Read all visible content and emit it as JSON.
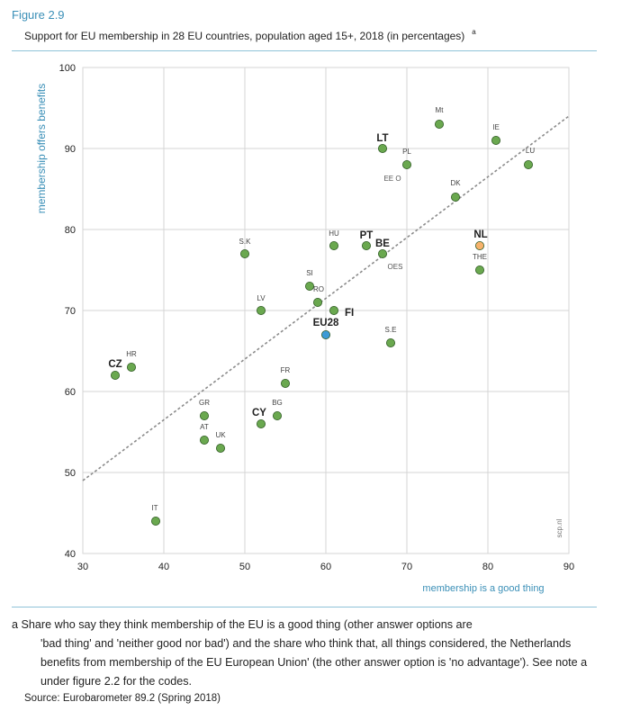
{
  "figure_label": "Figure 2.9",
  "figure_title": "Support for EU membership in 28 EU countries, population aged 15+, 2018 (in percentages)",
  "figure_title_note_mark": "a",
  "watermark": "scp.nl",
  "footnote": {
    "first_line": "a Share who say they think membership of the EU is a good thing (other answer options are",
    "rest": "'bad thing' and 'neither good nor bad') and the share who think that, all things considered, the Netherlands benefits from membership of the EU European Union' (the other answer option is 'no advantage'). See note a under figure 2.2 for the codes."
  },
  "source": "Source: Eurobarometer 89.2 (Spring 2018)",
  "colors": {
    "default_point": "#6aa84f",
    "point_stroke": "#2e5a23",
    "highlight_nl": "#f6b26b",
    "highlight_eu28": "#3d9bd6",
    "axis_title": "#3a8fb7",
    "grid": "#d4d4d4",
    "trend": "#8c8c8c"
  },
  "chart_data": {
    "type": "scatter",
    "xlabel": "membership is a good thing",
    "ylabel": "membership offers benefits",
    "xlim": [
      30,
      90
    ],
    "ylim": [
      40,
      100
    ],
    "xticks": [
      30,
      40,
      50,
      60,
      70,
      80,
      90
    ],
    "yticks": [
      40,
      50,
      60,
      70,
      80,
      90,
      100
    ],
    "grid": true,
    "trendline": {
      "from": [
        30,
        49
      ],
      "to": [
        90,
        94
      ]
    },
    "points": [
      {
        "label": "Mt",
        "x": 74,
        "y": 93
      },
      {
        "label": "IE",
        "x": 81,
        "y": 91
      },
      {
        "label": "LU",
        "x": 85,
        "y": 88
      },
      {
        "label": "LT",
        "x": 67,
        "y": 90,
        "emphasis": true
      },
      {
        "label": "PL",
        "x": 70,
        "y": 88
      },
      {
        "label": "EE O",
        "x": null,
        "y": null
      },
      {
        "label": "DK",
        "x": 76,
        "y": 84
      },
      {
        "label": "NL",
        "x": 79,
        "y": 78,
        "emphasis": true,
        "color_key": "highlight_nl"
      },
      {
        "label": "THE",
        "x": 79,
        "y": 75
      },
      {
        "label": "HU",
        "x": 61,
        "y": 78
      },
      {
        "label": "PT",
        "x": 65,
        "y": 78,
        "emphasis": true
      },
      {
        "label": "BE",
        "x": 67,
        "y": 77,
        "emphasis": true
      },
      {
        "label": "OES",
        "x": null,
        "y": null
      },
      {
        "label": "S.K",
        "x": 50,
        "y": 77
      },
      {
        "label": "SI",
        "x": 58,
        "y": 73
      },
      {
        "label": "RO",
        "x": 59,
        "y": 71
      },
      {
        "label": "FI",
        "x": 61,
        "y": 70,
        "emphasis": true
      },
      {
        "label": "LV",
        "x": 52,
        "y": 70
      },
      {
        "label": "EU28",
        "x": 60,
        "y": 67,
        "emphasis": true,
        "color_key": "highlight_eu28"
      },
      {
        "label": "S.E",
        "x": 68,
        "y": 66
      },
      {
        "label": "HR",
        "x": 36,
        "y": 63
      },
      {
        "label": "CZ",
        "x": 34,
        "y": 62,
        "emphasis": true
      },
      {
        "label": "FR",
        "x": 55,
        "y": 61
      },
      {
        "label": "GR",
        "x": 45,
        "y": 57
      },
      {
        "label": "BG",
        "x": 54,
        "y": 57
      },
      {
        "label": "CY",
        "x": 52,
        "y": 56,
        "emphasis": true
      },
      {
        "label": "AT",
        "x": 45,
        "y": 54
      },
      {
        "label": "UK",
        "x": 47,
        "y": 53
      },
      {
        "label": "IT",
        "x": 39,
        "y": 44
      }
    ]
  }
}
